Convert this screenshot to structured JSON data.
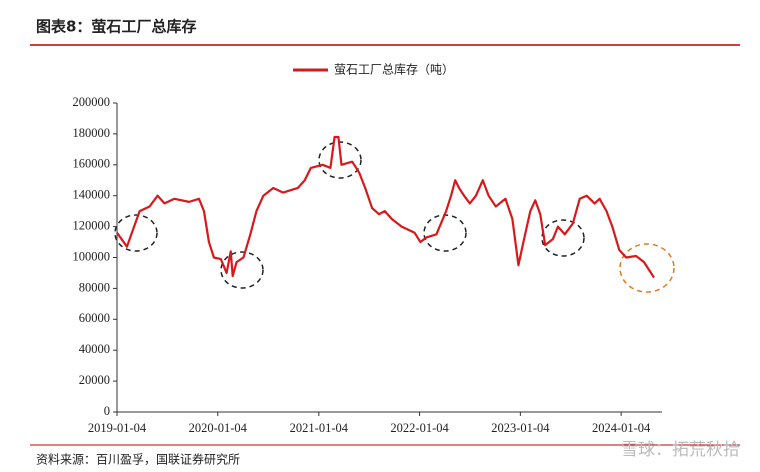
{
  "chart_data": {
    "type": "line",
    "title": "图表8：萤石工厂总库存",
    "source": "资料来源：百川盈孚，国联证券研究所",
    "watermark": "雪球：拓荒秋拾",
    "legend": "top",
    "x": [
      "2019-01-04",
      "2019-02-09",
      "2019-03-27",
      "2019-05-02",
      "2019-05-31",
      "2019-06-25",
      "2019-07-31",
      "2019-09-22",
      "2019-10-28",
      "2019-11-15",
      "2019-12-03",
      "2019-12-21",
      "2020-01-15",
      "2020-02-05",
      "2020-02-20",
      "2020-02-27",
      "2020-03-12",
      "2020-04-06",
      "2020-05-01",
      "2020-05-23",
      "2020-06-17",
      "2020-07-23",
      "2020-08-28",
      "2020-10-20",
      "2020-11-14",
      "2020-12-06",
      "2021-01-18",
      "2021-02-15",
      "2021-03-02",
      "2021-03-16",
      "2021-03-27",
      "2021-05-05",
      "2021-05-30",
      "2021-06-21",
      "2021-07-16",
      "2021-08-10",
      "2021-08-31",
      "2021-09-25",
      "2021-10-31",
      "2021-12-17",
      "2022-01-07",
      "2022-01-29",
      "2022-03-06",
      "2022-04-10",
      "2022-04-28",
      "2022-05-13",
      "2022-05-27",
      "2022-06-14",
      "2022-07-05",
      "2022-07-27",
      "2022-08-21",
      "2022-09-11",
      "2022-10-07",
      "2022-11-11",
      "2022-12-06",
      "2022-12-28",
      "2023-01-15",
      "2023-02-09",
      "2023-02-27",
      "2023-03-17",
      "2023-04-04",
      "2023-05-02",
      "2023-05-20",
      "2023-06-14",
      "2023-07-13",
      "2023-08-07",
      "2023-09-01",
      "2023-09-30",
      "2023-10-18",
      "2023-11-12",
      "2023-12-03",
      "2023-12-28",
      "2024-01-22",
      "2024-02-27",
      "2024-03-27",
      "2024-04-14",
      "2024-05-02"
    ],
    "series": [
      {
        "name": "萤石工厂总库存（吨）",
        "color": "#d7191c",
        "values": [
          116000,
          107000,
          130000,
          133000,
          140000,
          135000,
          138000,
          136000,
          138000,
          130000,
          110000,
          100000,
          99000,
          90000,
          104000,
          88000,
          97000,
          100000,
          115000,
          130000,
          140000,
          145000,
          142000,
          145000,
          150000,
          158000,
          160000,
          158000,
          178000,
          178000,
          160000,
          162000,
          155000,
          145000,
          132000,
          128000,
          130000,
          125000,
          120000,
          116000,
          110000,
          113000,
          115000,
          130000,
          140000,
          150000,
          145000,
          140000,
          135000,
          140000,
          150000,
          140000,
          133000,
          138000,
          125000,
          95000,
          110000,
          130000,
          137000,
          128000,
          108000,
          112000,
          120000,
          115000,
          122000,
          138000,
          140000,
          135000,
          138000,
          130000,
          120000,
          105000,
          100000,
          101000,
          97000,
          92000,
          87000
        ]
      }
    ],
    "xlim": [
      "2019-01-04",
      "2024-05-31"
    ],
    "xticks": [
      "2019-01-04",
      "2020-01-04",
      "2021-01-04",
      "2022-01-04",
      "2023-01-04",
      "2024-01-04"
    ],
    "ylim": [
      0,
      200000
    ],
    "yticks": [
      0,
      20000,
      40000,
      60000,
      80000,
      100000,
      120000,
      140000,
      160000,
      180000,
      200000
    ]
  }
}
